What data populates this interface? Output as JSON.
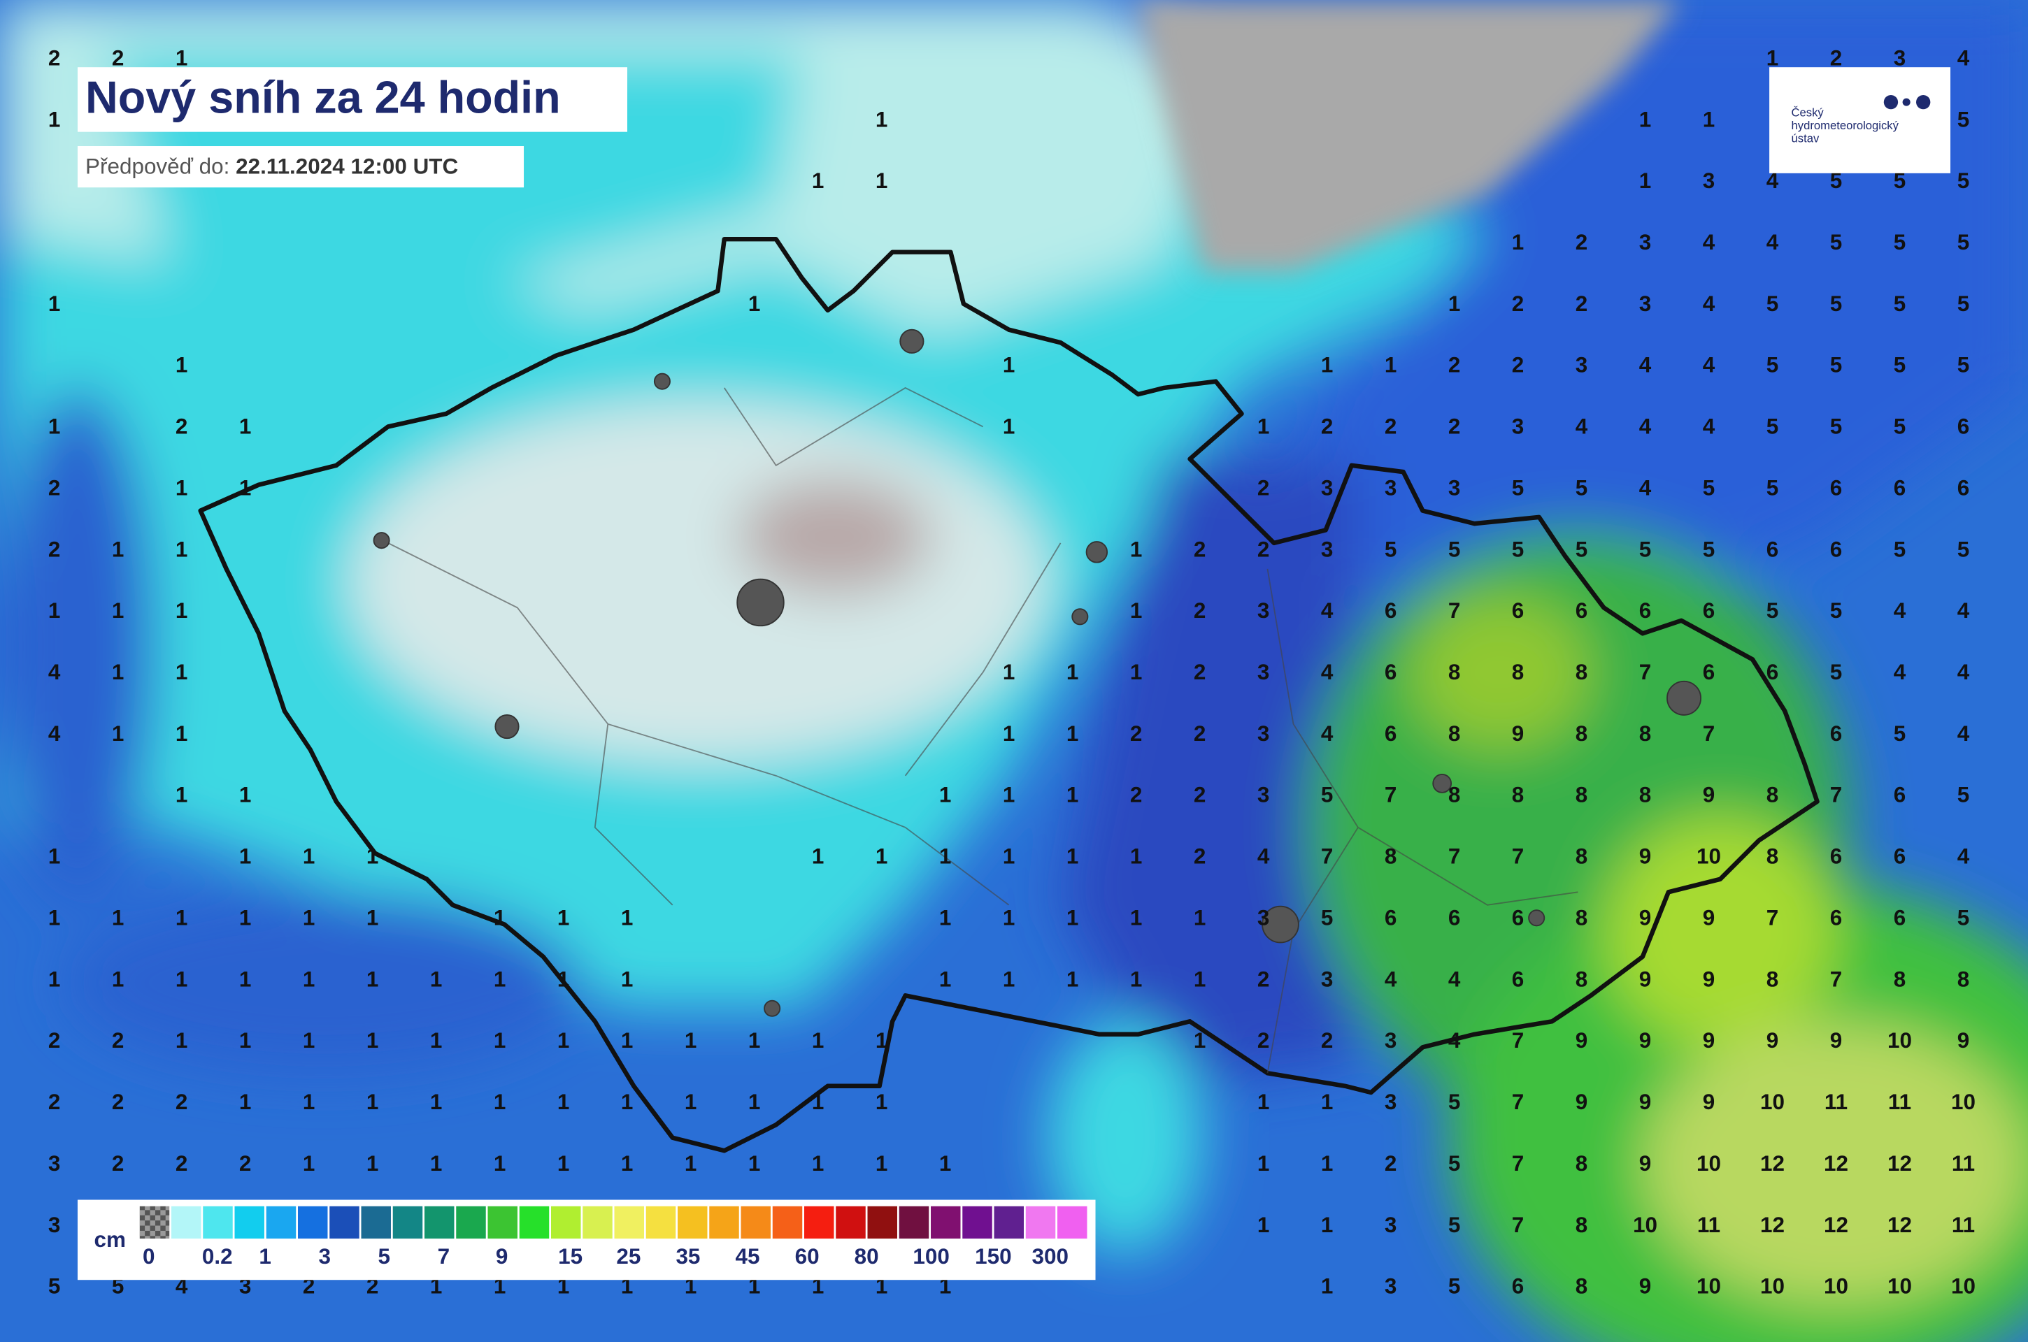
{
  "header": {
    "title": "Nový sníh za 24 hodin",
    "forecast_label": "Předpověď do:",
    "forecast_time": "22.11.2024 12:00 UTC"
  },
  "logo": {
    "lines": [
      "Český",
      "hydrometeorologický",
      "ústav"
    ]
  },
  "legend": {
    "unit": "cm",
    "labels": [
      "0",
      "0.2",
      "1",
      "3",
      "5",
      "7",
      "9",
      "15",
      "25",
      "35",
      "45",
      "60",
      "80",
      "100",
      "150",
      "300"
    ],
    "colors": [
      "#777777",
      "#b3f6f8",
      "#4ee6ee",
      "#12cdee",
      "#1aa7f0",
      "#1570e0",
      "#1b4fb8",
      "#1b6b93",
      "#138686",
      "#13956d",
      "#1aa84e",
      "#3cc432",
      "#26e02a",
      "#b0ee30",
      "#d8f050",
      "#f0f060",
      "#f5e040",
      "#f5c020",
      "#f5a418",
      "#f58a18",
      "#f56018",
      "#f51e10",
      "#d01010",
      "#901010",
      "#701040",
      "#801070",
      "#701090",
      "#602090",
      "#f078f0",
      "#f060f0"
    ]
  },
  "grid": {
    "rows": [
      [
        2,
        2,
        1,
        null,
        null,
        null,
        null,
        null,
        null,
        null,
        null,
        null,
        null,
        null,
        null,
        null,
        null,
        null,
        null,
        null,
        null,
        null,
        null,
        null,
        null,
        null,
        null,
        1,
        2,
        3,
        4
      ],
      [
        1,
        null,
        null,
        null,
        null,
        null,
        null,
        null,
        null,
        null,
        null,
        null,
        null,
        1,
        null,
        null,
        null,
        null,
        null,
        null,
        null,
        null,
        null,
        null,
        null,
        1,
        1,
        null,
        null,
        null,
        5
      ],
      [
        null,
        null,
        null,
        null,
        null,
        null,
        null,
        null,
        null,
        null,
        null,
        null,
        1,
        1,
        null,
        null,
        null,
        null,
        null,
        null,
        null,
        null,
        null,
        null,
        null,
        1,
        3,
        4,
        5,
        5,
        5
      ],
      [
        null,
        null,
        null,
        null,
        null,
        null,
        null,
        null,
        null,
        null,
        null,
        null,
        null,
        null,
        null,
        null,
        null,
        null,
        null,
        null,
        null,
        null,
        null,
        1,
        2,
        3,
        4,
        4,
        5,
        5,
        5
      ],
      [
        1,
        null,
        null,
        null,
        null,
        null,
        null,
        null,
        null,
        null,
        null,
        1,
        null,
        null,
        null,
        null,
        null,
        null,
        null,
        null,
        null,
        null,
        1,
        2,
        2,
        3,
        4,
        5,
        5,
        5,
        5
      ],
      [
        null,
        null,
        1,
        null,
        null,
        null,
        null,
        null,
        null,
        null,
        null,
        null,
        null,
        null,
        null,
        1,
        null,
        null,
        null,
        null,
        1,
        1,
        2,
        2,
        3,
        4,
        4,
        5,
        5,
        5,
        5
      ],
      [
        1,
        null,
        2,
        1,
        null,
        null,
        null,
        null,
        null,
        null,
        null,
        null,
        null,
        null,
        null,
        1,
        null,
        null,
        null,
        1,
        2,
        2,
        2,
        3,
        4,
        4,
        4,
        5,
        5,
        5,
        6
      ],
      [
        2,
        null,
        1,
        1,
        null,
        null,
        null,
        null,
        null,
        null,
        null,
        null,
        null,
        null,
        null,
        null,
        null,
        null,
        null,
        2,
        3,
        3,
        3,
        5,
        5,
        4,
        5,
        5,
        6,
        6,
        6
      ],
      [
        2,
        1,
        1,
        null,
        null,
        null,
        null,
        null,
        null,
        null,
        null,
        null,
        null,
        null,
        null,
        null,
        null,
        1,
        2,
        2,
        3,
        5,
        5,
        5,
        5,
        5,
        5,
        6,
        6,
        5,
        5
      ],
      [
        1,
        1,
        1,
        null,
        null,
        null,
        null,
        null,
        null,
        null,
        null,
        null,
        null,
        null,
        null,
        null,
        null,
        1,
        2,
        3,
        4,
        6,
        7,
        6,
        6,
        6,
        6,
        5,
        5,
        4,
        4
      ],
      [
        4,
        1,
        1,
        null,
        null,
        null,
        null,
        null,
        null,
        null,
        null,
        null,
        null,
        null,
        null,
        1,
        1,
        1,
        2,
        3,
        4,
        6,
        8,
        8,
        8,
        7,
        6,
        6,
        5,
        4,
        4
      ],
      [
        4,
        1,
        1,
        null,
        null,
        null,
        null,
        null,
        null,
        null,
        null,
        null,
        null,
        null,
        null,
        1,
        1,
        2,
        2,
        3,
        4,
        6,
        8,
        9,
        8,
        8,
        7,
        null,
        6,
        5,
        4
      ],
      [
        null,
        null,
        1,
        1,
        null,
        null,
        null,
        null,
        null,
        null,
        null,
        null,
        null,
        null,
        1,
        1,
        1,
        2,
        2,
        3,
        5,
        7,
        8,
        8,
        8,
        8,
        9,
        8,
        7,
        6,
        5
      ],
      [
        1,
        null,
        null,
        1,
        1,
        1,
        null,
        null,
        null,
        null,
        null,
        null,
        1,
        1,
        1,
        1,
        1,
        1,
        2,
        4,
        7,
        8,
        7,
        7,
        8,
        9,
        10,
        8,
        6,
        6,
        4
      ],
      [
        1,
        1,
        1,
        1,
        1,
        1,
        null,
        1,
        1,
        1,
        null,
        null,
        null,
        null,
        1,
        1,
        1,
        1,
        1,
        3,
        5,
        6,
        6,
        6,
        8,
        9,
        9,
        7,
        6,
        6,
        5
      ],
      [
        1,
        1,
        1,
        1,
        1,
        1,
        1,
        1,
        1,
        1,
        null,
        null,
        null,
        null,
        1,
        1,
        1,
        1,
        1,
        2,
        3,
        4,
        4,
        6,
        8,
        9,
        9,
        8,
        7,
        8,
        8
      ],
      [
        2,
        2,
        1,
        1,
        1,
        1,
        1,
        1,
        1,
        1,
        1,
        1,
        1,
        1,
        null,
        null,
        null,
        null,
        1,
        2,
        2,
        3,
        4,
        7,
        9,
        9,
        9,
        9,
        9,
        10,
        9
      ],
      [
        2,
        2,
        2,
        1,
        1,
        1,
        1,
        1,
        1,
        1,
        1,
        1,
        1,
        1,
        null,
        null,
        null,
        null,
        null,
        1,
        1,
        3,
        5,
        7,
        9,
        9,
        9,
        10,
        11,
        11,
        10
      ],
      [
        3,
        2,
        2,
        2,
        1,
        1,
        1,
        1,
        1,
        1,
        1,
        1,
        1,
        1,
        1,
        null,
        null,
        null,
        null,
        1,
        1,
        2,
        5,
        7,
        8,
        9,
        10,
        12,
        12,
        12,
        11
      ],
      [
        3,
        null,
        null,
        null,
        null,
        null,
        null,
        null,
        null,
        null,
        null,
        null,
        null,
        null,
        null,
        null,
        null,
        null,
        null,
        1,
        1,
        3,
        5,
        7,
        8,
        10,
        11,
        12,
        12,
        12,
        11
      ],
      [
        5,
        5,
        4,
        3,
        2,
        2,
        1,
        1,
        1,
        1,
        1,
        1,
        1,
        1,
        1,
        null,
        null,
        null,
        null,
        null,
        1,
        3,
        5,
        6,
        8,
        9,
        10,
        10,
        10,
        10,
        10
      ]
    ]
  }
}
